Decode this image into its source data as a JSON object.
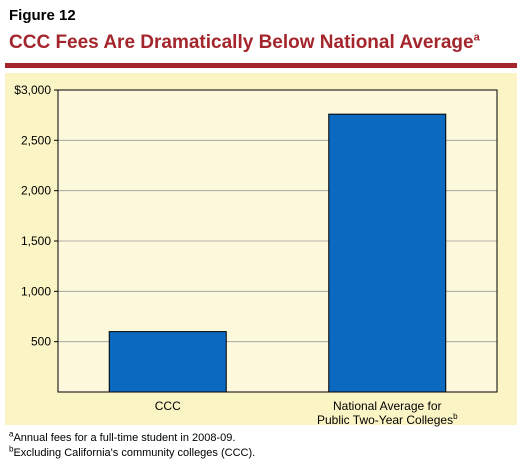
{
  "figure_label": "Figure 12",
  "title": "CCC Fees Are Dramatically Below National Average",
  "title_note": "a",
  "colors": {
    "title": "#a4262c",
    "rule": "#a4262c",
    "panel": "#fbf5c6",
    "plot_bg": "#fdf9dc",
    "bar": "#0b6abf",
    "axis": "#000000",
    "grid": "#9a9a9a"
  },
  "chart_data": {
    "type": "bar",
    "categories": [
      "CCC",
      "National Average for Public Two-Year Colleges"
    ],
    "category_lines": [
      [
        "CCC"
      ],
      [
        "National Average for",
        "Public Two-Year Colleges"
      ]
    ],
    "category_notes": [
      "",
      "b"
    ],
    "values": [
      600,
      2760
    ],
    "ylim": [
      0,
      3000
    ],
    "yticks": [
      500,
      1000,
      1500,
      2000,
      2500,
      3000
    ],
    "ytick_labels": [
      "500",
      "1,000",
      "1,500",
      "2,000",
      "2,500",
      "$3,000"
    ],
    "grid": true,
    "title": "CCC Fees Are Dramatically Below National Average",
    "xlabel": "",
    "ylabel": ""
  },
  "footnotes": [
    {
      "mark": "a",
      "text": "Annual fees for a full-time student in 2008-09."
    },
    {
      "mark": "b",
      "text": "Excluding California's community colleges (CCC)."
    }
  ]
}
